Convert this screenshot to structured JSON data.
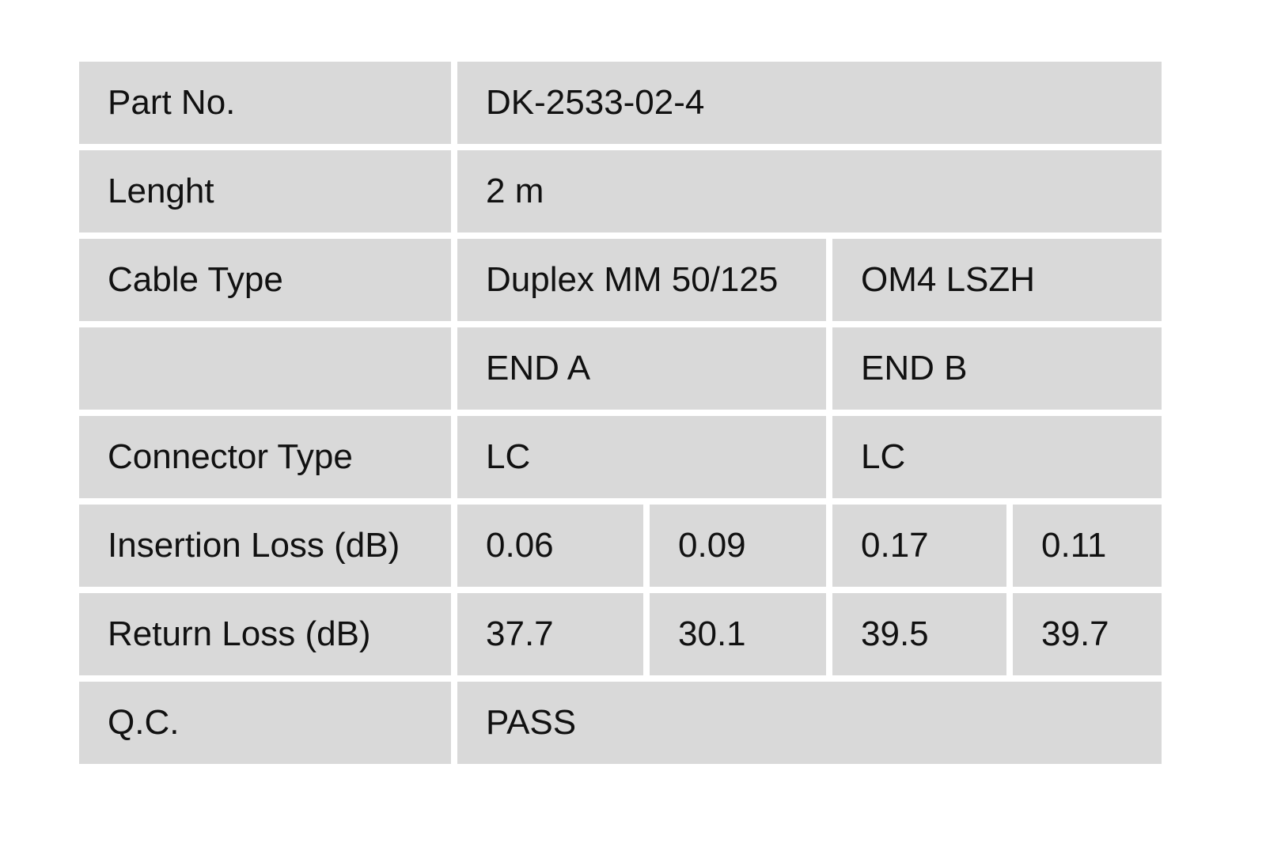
{
  "colors": {
    "page_bg": "#ffffff",
    "cell_bg": "#d9d9d9",
    "text_color": "#111111"
  },
  "table": {
    "part_no": {
      "label": "Part No.",
      "value": "DK-2533-02-4"
    },
    "length": {
      "label": "Lenght",
      "value": "2 m"
    },
    "cable_type": {
      "label": "Cable Type",
      "value_left": "Duplex MM 50/125",
      "value_right": "OM4 LSZH"
    },
    "end_headers": {
      "end_a": "END A",
      "end_b": "END B"
    },
    "connector_type": {
      "label": "Connector Type",
      "end_a": "LC",
      "end_b": "LC"
    },
    "insertion_loss": {
      "label": "Insertion Loss (dB)",
      "values": [
        "0.06",
        "0.09",
        "0.17",
        "0.11"
      ]
    },
    "return_loss": {
      "label": "Return Loss (dB)",
      "values": [
        "37.7",
        "30.1",
        "39.5",
        "39.7"
      ]
    },
    "qc": {
      "label": "Q.C.",
      "value": "PASS"
    }
  }
}
